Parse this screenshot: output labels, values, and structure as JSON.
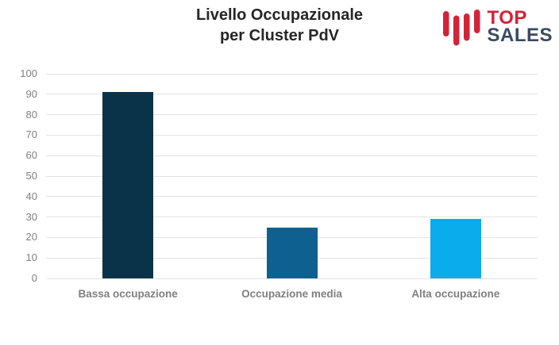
{
  "header": {
    "title_line1": "Livello Occupazionale",
    "title_line2": "per Cluster PdV",
    "logo": {
      "text_top": "TOP",
      "text_bottom": "SALES",
      "icon_color": "#d2233a",
      "top_color": "#d2233a",
      "sales_color": "#3a4a5f"
    }
  },
  "chart_data": {
    "type": "bar",
    "title": "Livello Occupazionale per Cluster PdV",
    "categories": [
      "Bassa occupazione",
      "Occupazione media",
      "Alta occupazione"
    ],
    "values": [
      91,
      25,
      29
    ],
    "bar_colors": [
      "#0a3349",
      "#0e6090",
      "#0baceb"
    ],
    "xlabel": "",
    "ylabel": "",
    "ylim": [
      0,
      100
    ],
    "ytick_step": 10,
    "grid": true,
    "legend": false,
    "gridline_color": "#e2e2e2",
    "tick_label_color": "#808080",
    "category_label_color": "#7f7f7f"
  }
}
